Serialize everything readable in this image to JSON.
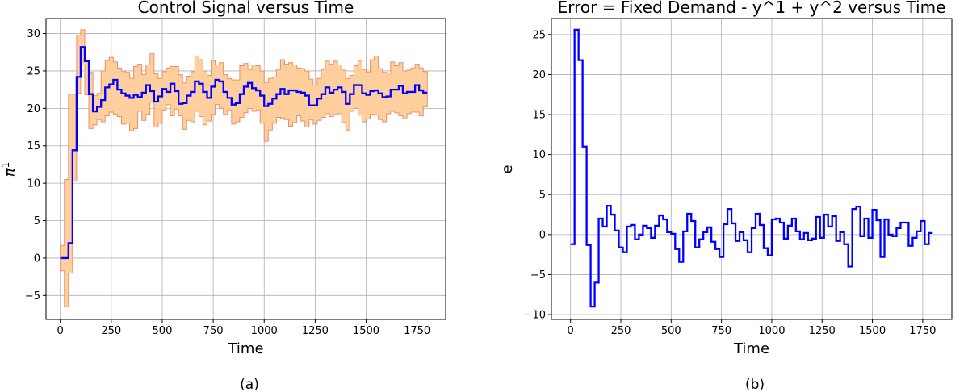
{
  "chart_data": [
    {
      "type": "line",
      "panel": "a",
      "caption": "(a)",
      "title": "Control Signal versus Time",
      "xlabel": "Time",
      "ylabel": "π",
      "ylabel_sup": "1",
      "xlim": [
        -70,
        1890
      ],
      "ylim": [
        -8.2,
        32
      ],
      "xticks": [
        0,
        250,
        500,
        750,
        1000,
        1250,
        1500,
        1750
      ],
      "yticks": [
        -5,
        0,
        5,
        10,
        15,
        20,
        25,
        30
      ],
      "grid": true,
      "colors": {
        "line": "#0000ff",
        "band_fill": "#ffcc99",
        "band_edge": "#e8906a"
      },
      "series": [
        {
          "style": "step",
          "x": [
            0,
            20,
            40,
            60,
            80,
            100,
            120,
            140,
            160,
            180,
            200,
            220,
            240,
            260,
            280,
            300,
            320,
            340,
            360,
            380,
            400,
            420,
            440,
            460,
            480,
            500,
            520,
            540,
            560,
            580,
            600,
            620,
            640,
            660,
            680,
            700,
            720,
            740,
            760,
            780,
            800,
            820,
            840,
            860,
            880,
            900,
            920,
            940,
            960,
            980,
            1000,
            1020,
            1040,
            1060,
            1080,
            1100,
            1120,
            1140,
            1160,
            1180,
            1200,
            1220,
            1240,
            1260,
            1280,
            1300,
            1320,
            1340,
            1360,
            1380,
            1400,
            1420,
            1440,
            1460,
            1480,
            1500,
            1520,
            1540,
            1560,
            1580,
            1600,
            1620,
            1640,
            1660,
            1680,
            1700,
            1720,
            1740,
            1760,
            1780,
            1800
          ],
          "y": [
            0,
            0,
            2,
            14.4,
            24.2,
            28.2,
            26.3,
            21.9,
            19.6,
            20.2,
            21.1,
            22.8,
            23.2,
            23.8,
            22.5,
            22.0,
            21.7,
            21.4,
            21.8,
            21.5,
            22.1,
            23.1,
            22.3,
            20.9,
            21.6,
            22.6,
            22.2,
            23.3,
            22.3,
            20.6,
            20.7,
            21.7,
            22.2,
            23.6,
            23.3,
            22.2,
            21.4,
            22.9,
            23.8,
            23.6,
            22.2,
            21.4,
            20.5,
            20.7,
            21.9,
            22.9,
            23.4,
            22.7,
            22.4,
            21.7,
            20.3,
            20.6,
            21.3,
            21.9,
            22.6,
            21.9,
            22.4,
            22.4,
            22.2,
            22.1,
            21.7,
            20.4,
            20.4,
            21.3,
            21.9,
            22.8,
            22.1,
            22.5,
            22.8,
            22.2,
            20.6,
            21.9,
            23.1,
            23.1,
            22.0,
            21.8,
            22.3,
            22.4,
            22.0,
            21.5,
            21.6,
            22.5,
            22.5,
            23.0,
            22.0,
            22.2,
            22.2,
            23.1,
            22.4,
            22.1,
            22.1
          ]
        },
        {
          "style": "band",
          "x": [
            0,
            20,
            40,
            60,
            80,
            100,
            120,
            140,
            160,
            180,
            200,
            220,
            240,
            260,
            280,
            300,
            320,
            340,
            360,
            380,
            400,
            420,
            440,
            460,
            480,
            500,
            520,
            540,
            560,
            580,
            600,
            620,
            640,
            660,
            680,
            700,
            720,
            740,
            760,
            780,
            800,
            820,
            840,
            860,
            880,
            900,
            920,
            940,
            960,
            980,
            1000,
            1020,
            1040,
            1060,
            1080,
            1100,
            1120,
            1140,
            1160,
            1180,
            1200,
            1220,
            1240,
            1260,
            1280,
            1300,
            1320,
            1340,
            1360,
            1380,
            1400,
            1420,
            1440,
            1460,
            1480,
            1500,
            1520,
            1540,
            1560,
            1580,
            1600,
            1620,
            1640,
            1660,
            1680,
            1700,
            1720,
            1740,
            1760,
            1780,
            1800
          ],
          "lower": [
            -1.7,
            -6.5,
            -2,
            10.3,
            22,
            25.8,
            21.8,
            17.3,
            17.8,
            18.5,
            18.2,
            19.0,
            19.5,
            19.2,
            18.9,
            17.9,
            18.0,
            17.0,
            17.3,
            19.6,
            18.4,
            19.2,
            20.8,
            17.5,
            18.0,
            19.8,
            20.5,
            19.0,
            19.9,
            19.0,
            17.2,
            18.4,
            18.2,
            19.6,
            18.9,
            17.8,
            18.3,
            19.2,
            20.5,
            20.0,
            19.2,
            19.8,
            17.9,
            18.2,
            18.8,
            19.4,
            20.0,
            19.6,
            19.8,
            18.0,
            15.6,
            17.1,
            18.0,
            18.8,
            18.7,
            18.5,
            17.6,
            18.1,
            19.0,
            18.3,
            17.5,
            18.5,
            17.9,
            18.4,
            18.8,
            19.3,
            18.9,
            19.2,
            19.3,
            18.1,
            17.1,
            19.6,
            20.0,
            19.1,
            18.2,
            18.6,
            19.2,
            19.1,
            18.5,
            18.2,
            19.3,
            19.6,
            19.4,
            19.0,
            18.6,
            19.3,
            19.5,
            19.5,
            19.0,
            20.2,
            20.2
          ],
          "upper": [
            1.7,
            10.5,
            21.9,
            21.9,
            29.8,
            30.5,
            26.3,
            24.8,
            21.7,
            22.0,
            25.0,
            26.4,
            26.8,
            26.2,
            25.4,
            25.0,
            24.8,
            24.0,
            25.6,
            25.9,
            24.5,
            25.8,
            27.3,
            24.6,
            24.0,
            24.9,
            25.4,
            25.6,
            25.6,
            24.5,
            23.4,
            24.3,
            24.9,
            27.0,
            26.5,
            25.0,
            24.4,
            26.4,
            25.8,
            26.1,
            24.5,
            24.0,
            23.8,
            23.8,
            25.7,
            26.0,
            25.2,
            25.8,
            25.7,
            25.0,
            23.4,
            24.0,
            24.2,
            25.2,
            26.5,
            25.9,
            26.1,
            25.8,
            25.4,
            25.3,
            25.0,
            23.9,
            23.1,
            24.0,
            25.2,
            26.3,
            25.9,
            26.3,
            25.8,
            25.1,
            24.0,
            24.4,
            25.7,
            26.4,
            25.2,
            24.8,
            26.5,
            27.0,
            25.3,
            24.8,
            24.7,
            26.2,
            25.7,
            26.1,
            25.0,
            25.1,
            25.4,
            25.9,
            25.4,
            24.9,
            24.9
          ]
        }
      ]
    },
    {
      "type": "line",
      "panel": "b",
      "caption": "(b)",
      "title": "Error = Fixed Demand - y^1 + y^2 versus Time",
      "xlabel": "Time",
      "ylabel": "e",
      "xlim": [
        -95,
        1895
      ],
      "ylim": [
        -10.6,
        27
      ],
      "xticks": [
        0,
        250,
        500,
        750,
        1000,
        1250,
        1500,
        1750
      ],
      "yticks": [
        -10,
        -5,
        0,
        5,
        10,
        15,
        20,
        25
      ],
      "grid": true,
      "colors": {
        "line": "#0000ff"
      },
      "series": [
        {
          "style": "step",
          "x": [
            0,
            20,
            40,
            60,
            80,
            100,
            120,
            140,
            160,
            180,
            200,
            220,
            240,
            260,
            280,
            300,
            320,
            340,
            360,
            380,
            400,
            420,
            440,
            460,
            480,
            500,
            520,
            540,
            560,
            580,
            600,
            620,
            640,
            660,
            680,
            700,
            720,
            740,
            760,
            780,
            800,
            820,
            840,
            860,
            880,
            900,
            920,
            940,
            960,
            980,
            1000,
            1020,
            1040,
            1060,
            1080,
            1100,
            1120,
            1140,
            1160,
            1180,
            1200,
            1220,
            1240,
            1260,
            1280,
            1300,
            1320,
            1340,
            1360,
            1380,
            1400,
            1420,
            1440,
            1460,
            1480,
            1500,
            1520,
            1540,
            1560,
            1580,
            1600,
            1620,
            1640,
            1660,
            1680,
            1700,
            1720,
            1740,
            1760,
            1780,
            1800
          ],
          "y": [
            -1.2,
            25.6,
            21.8,
            11.0,
            -1.3,
            -9.0,
            -6.0,
            2.0,
            1.0,
            3.6,
            2.5,
            0.5,
            -1.6,
            -2.2,
            1.0,
            1.2,
            -0.6,
            0,
            1.1,
            0.8,
            -0.4,
            1.1,
            2.4,
            1.9,
            0.3,
            0.1,
            -1.8,
            -3.4,
            0.4,
            2.6,
            1.7,
            -1.6,
            -0.6,
            0.3,
            0.9,
            -0.9,
            -1.8,
            -2.8,
            1.3,
            3.2,
            1.4,
            -0.8,
            0.3,
            -0.7,
            -2.2,
            0.8,
            2.6,
            1.2,
            -1.7,
            -2.6,
            1.9,
            2.0,
            1.5,
            -0.5,
            1.1,
            2.0,
            0.4,
            -0.6,
            0.2,
            -0.7,
            -0.5,
            2.2,
            -0.4,
            2.5,
            1.0,
            2.3,
            -0.8,
            0.3,
            -1.2,
            -4.0,
            3.2,
            3.5,
            -0.2,
            2.0,
            -0.4,
            3.1,
            1.8,
            -2.8,
            1.9,
            0,
            -0.2,
            0.8,
            1.5,
            1.5,
            -1.4,
            -0.4,
            0.4,
            1.7,
            -1.2,
            0.2,
            0.2
          ]
        }
      ]
    }
  ]
}
